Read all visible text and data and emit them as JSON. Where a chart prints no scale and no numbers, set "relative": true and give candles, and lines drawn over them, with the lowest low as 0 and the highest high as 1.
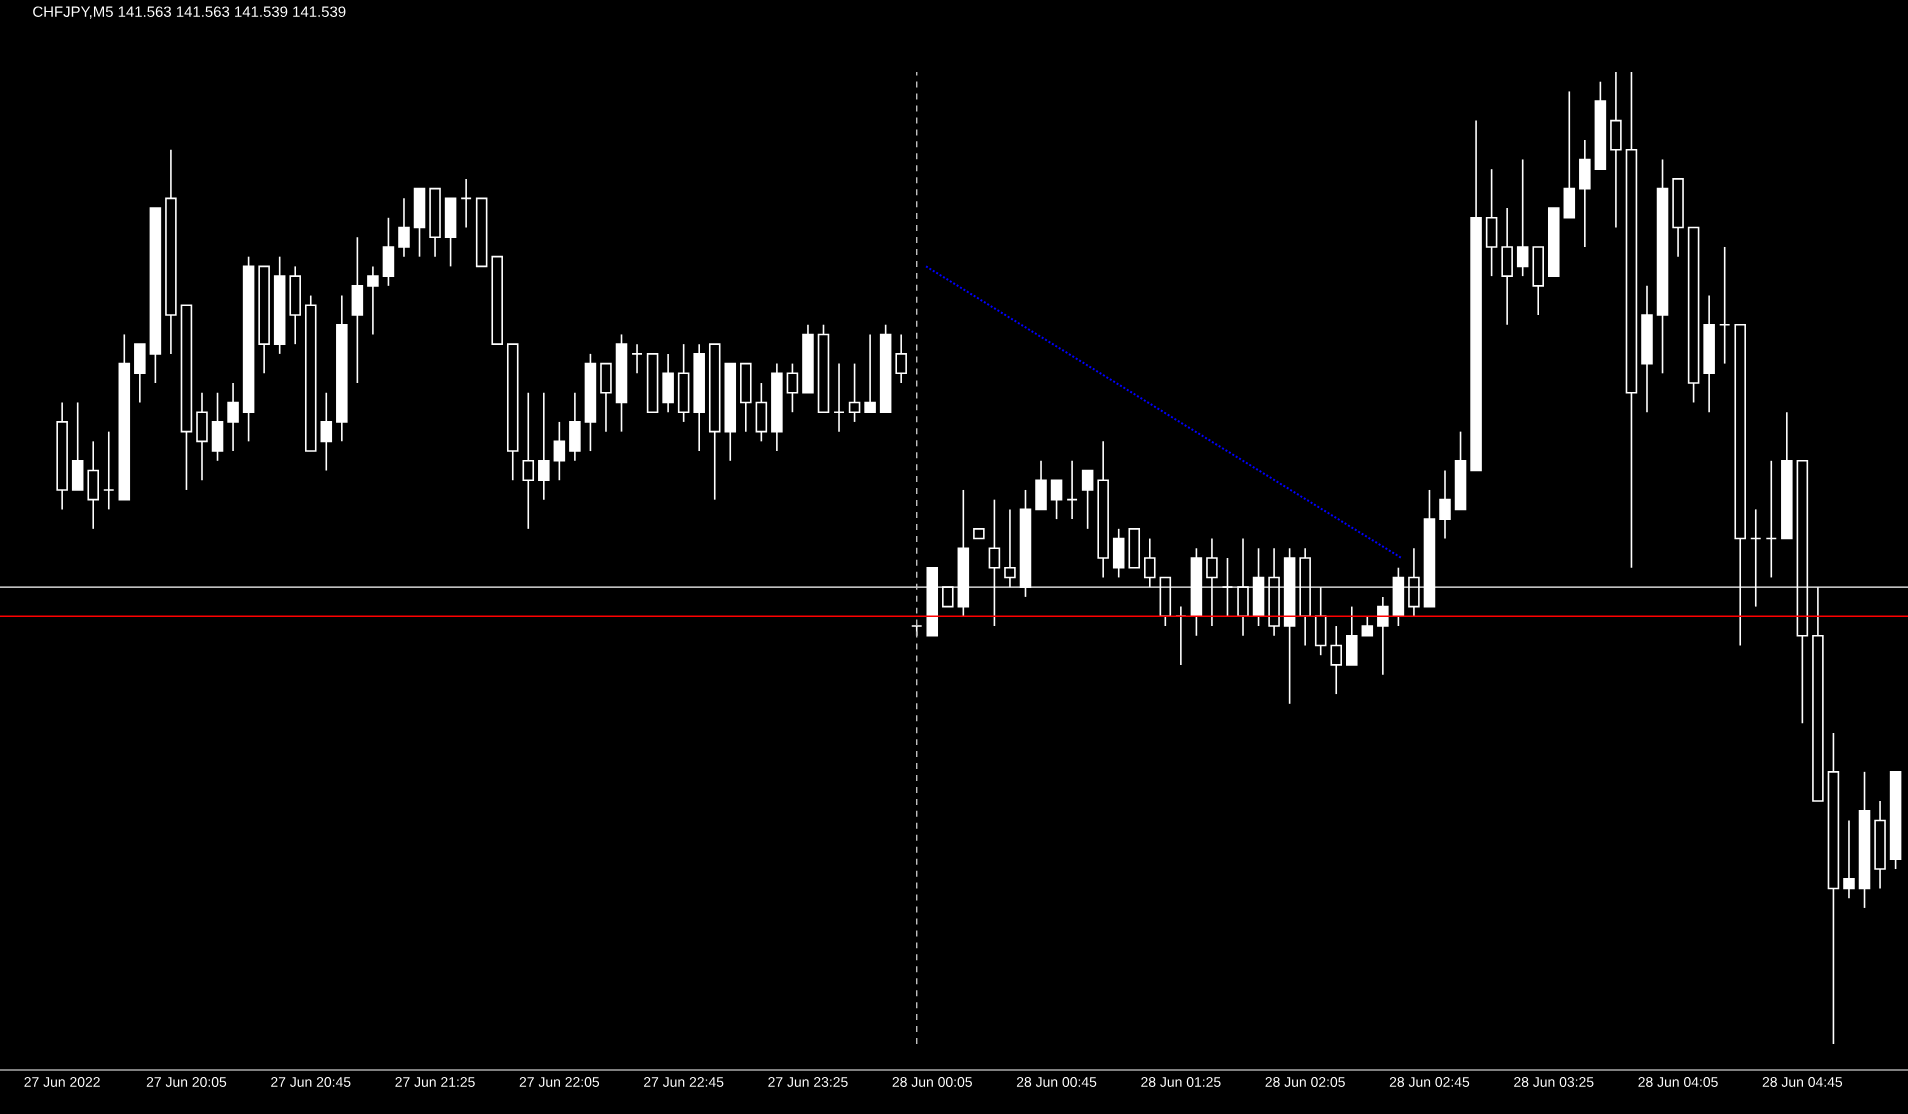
{
  "chart_data": {
    "type": "candlestick",
    "title": "CHFJPY,M5 141.563 141.563 141.539 141.539",
    "relative": true,
    "color": "#ffffff",
    "x": [
      "2022-06-27T19:25",
      "2022-06-27T19:30",
      "2022-06-27T19:35",
      "2022-06-27T19:40",
      "2022-06-27T19:45",
      "2022-06-27T19:50",
      "2022-06-27T19:55",
      "2022-06-27T20:00",
      "2022-06-27T20:05",
      "2022-06-27T20:10",
      "2022-06-27T20:15",
      "2022-06-27T20:20",
      "2022-06-27T20:25",
      "2022-06-27T20:30",
      "2022-06-27T20:35",
      "2022-06-27T20:40",
      "2022-06-27T20:45",
      "2022-06-27T20:50",
      "2022-06-27T20:55",
      "2022-06-27T21:00",
      "2022-06-27T21:05",
      "2022-06-27T21:10",
      "2022-06-27T21:15",
      "2022-06-27T21:20",
      "2022-06-27T21:25",
      "2022-06-27T21:30",
      "2022-06-27T21:35",
      "2022-06-27T21:40",
      "2022-06-27T21:45",
      "2022-06-27T21:50",
      "2022-06-27T21:55",
      "2022-06-27T22:00",
      "2022-06-27T22:05",
      "2022-06-27T22:10",
      "2022-06-27T22:15",
      "2022-06-27T22:20",
      "2022-06-27T22:25",
      "2022-06-27T22:30",
      "2022-06-27T22:35",
      "2022-06-27T22:40",
      "2022-06-27T22:45",
      "2022-06-27T22:50",
      "2022-06-27T22:55",
      "2022-06-27T23:00",
      "2022-06-27T23:05",
      "2022-06-27T23:10",
      "2022-06-27T23:15",
      "2022-06-27T23:20",
      "2022-06-27T23:25",
      "2022-06-27T23:30",
      "2022-06-27T23:35",
      "2022-06-27T23:40",
      "2022-06-27T23:45",
      "2022-06-27T23:50",
      "2022-06-27T23:55",
      "2022-06-28T00:00",
      "2022-06-28T00:05",
      "2022-06-28T00:10",
      "2022-06-28T00:15",
      "2022-06-28T00:20",
      "2022-06-28T00:25",
      "2022-06-28T00:30",
      "2022-06-28T00:35",
      "2022-06-28T00:40",
      "2022-06-28T00:45",
      "2022-06-28T00:50",
      "2022-06-28T00:55",
      "2022-06-28T01:00",
      "2022-06-28T01:05",
      "2022-06-28T01:10",
      "2022-06-28T01:15",
      "2022-06-28T01:20",
      "2022-06-28T01:25",
      "2022-06-28T01:30",
      "2022-06-28T01:35",
      "2022-06-28T01:40",
      "2022-06-28T01:45",
      "2022-06-28T01:50",
      "2022-06-28T01:55",
      "2022-06-28T02:00",
      "2022-06-28T02:05",
      "2022-06-28T02:10",
      "2022-06-28T02:15",
      "2022-06-28T02:20",
      "2022-06-28T02:25",
      "2022-06-28T02:30",
      "2022-06-28T02:35",
      "2022-06-28T02:40",
      "2022-06-28T02:45",
      "2022-06-28T02:50",
      "2022-06-28T02:55",
      "2022-06-28T03:00",
      "2022-06-28T03:05",
      "2022-06-28T03:10",
      "2022-06-28T03:15",
      "2022-06-28T03:20",
      "2022-06-28T03:25",
      "2022-06-28T03:30",
      "2022-06-28T03:35",
      "2022-06-28T03:40",
      "2022-06-28T03:45",
      "2022-06-28T03:50",
      "2022-06-28T03:55",
      "2022-06-28T04:00",
      "2022-06-28T04:05",
      "2022-06-28T04:10",
      "2022-06-28T04:15",
      "2022-06-28T04:20",
      "2022-06-28T04:25",
      "2022-06-28T04:30",
      "2022-06-28T04:35",
      "2022-06-28T04:40",
      "2022-06-28T04:45",
      "2022-06-28T04:50",
      "2022-06-28T04:55",
      "2022-06-28T05:00",
      "2022-06-28T05:05",
      "2022-06-28T05:10",
      "2022-06-28T05:15"
    ],
    "ohlc": [
      [
        0.64,
        0.66,
        0.55,
        0.57
      ],
      [
        0.57,
        0.66,
        0.57,
        0.6
      ],
      [
        0.59,
        0.62,
        0.53,
        0.56
      ],
      [
        0.57,
        0.63,
        0.55,
        0.57
      ],
      [
        0.56,
        0.73,
        0.56,
        0.7
      ],
      [
        0.69,
        0.72,
        0.66,
        0.72
      ],
      [
        0.71,
        0.86,
        0.68,
        0.86
      ],
      [
        0.87,
        0.92,
        0.71,
        0.75
      ],
      [
        0.76,
        0.76,
        0.57,
        0.63
      ],
      [
        0.65,
        0.67,
        0.58,
        0.62
      ],
      [
        0.61,
        0.67,
        0.6,
        0.64
      ],
      [
        0.64,
        0.68,
        0.61,
        0.66
      ],
      [
        0.65,
        0.81,
        0.62,
        0.8
      ],
      [
        0.8,
        0.8,
        0.69,
        0.72
      ],
      [
        0.72,
        0.81,
        0.71,
        0.79
      ],
      [
        0.79,
        0.8,
        0.72,
        0.75
      ],
      [
        0.76,
        0.77,
        0.61,
        0.61
      ],
      [
        0.62,
        0.67,
        0.59,
        0.64
      ],
      [
        0.64,
        0.77,
        0.62,
        0.74
      ],
      [
        0.75,
        0.83,
        0.68,
        0.78
      ],
      [
        0.78,
        0.8,
        0.73,
        0.79
      ],
      [
        0.79,
        0.85,
        0.78,
        0.82
      ],
      [
        0.82,
        0.87,
        0.81,
        0.84
      ],
      [
        0.84,
        0.88,
        0.81,
        0.88
      ],
      [
        0.88,
        0.88,
        0.81,
        0.83
      ],
      [
        0.83,
        0.87,
        0.8,
        0.87
      ],
      [
        0.87,
        0.89,
        0.84,
        0.87
      ],
      [
        0.87,
        0.87,
        0.8,
        0.8
      ],
      [
        0.81,
        0.81,
        0.72,
        0.72
      ],
      [
        0.72,
        0.72,
        0.58,
        0.61
      ],
      [
        0.6,
        0.67,
        0.53,
        0.58
      ],
      [
        0.58,
        0.67,
        0.56,
        0.6
      ],
      [
        0.6,
        0.64,
        0.58,
        0.62
      ],
      [
        0.61,
        0.67,
        0.6,
        0.64
      ],
      [
        0.64,
        0.71,
        0.61,
        0.7
      ],
      [
        0.7,
        0.7,
        0.63,
        0.67
      ],
      [
        0.66,
        0.73,
        0.63,
        0.72
      ],
      [
        0.71,
        0.72,
        0.69,
        0.71
      ],
      [
        0.71,
        0.71,
        0.65,
        0.65
      ],
      [
        0.66,
        0.71,
        0.65,
        0.69
      ],
      [
        0.69,
        0.72,
        0.64,
        0.65
      ],
      [
        0.65,
        0.72,
        0.61,
        0.71
      ],
      [
        0.72,
        0.72,
        0.56,
        0.63
      ],
      [
        0.63,
        0.7,
        0.6,
        0.7
      ],
      [
        0.7,
        0.7,
        0.63,
        0.66
      ],
      [
        0.66,
        0.68,
        0.62,
        0.63
      ],
      [
        0.63,
        0.7,
        0.61,
        0.69
      ],
      [
        0.69,
        0.7,
        0.65,
        0.67
      ],
      [
        0.67,
        0.74,
        0.67,
        0.73
      ],
      [
        0.73,
        0.74,
        0.65,
        0.65
      ],
      [
        0.65,
        0.7,
        0.63,
        0.65
      ],
      [
        0.66,
        0.7,
        0.64,
        0.65
      ],
      [
        0.65,
        0.73,
        0.65,
        0.66
      ],
      [
        0.65,
        0.74,
        0.65,
        0.73
      ],
      [
        0.71,
        0.73,
        0.68,
        0.69
      ],
      [
        0.43,
        0.43,
        0.42,
        0.43
      ],
      [
        0.42,
        0.49,
        0.42,
        0.49
      ],
      [
        0.47,
        0.47,
        0.45,
        0.45
      ],
      [
        0.45,
        0.57,
        0.44,
        0.51
      ],
      [
        0.53,
        0.53,
        0.52,
        0.52
      ],
      [
        0.51,
        0.56,
        0.43,
        0.49
      ],
      [
        0.49,
        0.55,
        0.47,
        0.48
      ],
      [
        0.47,
        0.57,
        0.46,
        0.55
      ],
      [
        0.55,
        0.6,
        0.55,
        0.58
      ],
      [
        0.56,
        0.58,
        0.54,
        0.58
      ],
      [
        0.56,
        0.6,
        0.54,
        0.56
      ],
      [
        0.57,
        0.59,
        0.53,
        0.59
      ],
      [
        0.58,
        0.62,
        0.48,
        0.5
      ],
      [
        0.49,
        0.53,
        0.48,
        0.52
      ],
      [
        0.53,
        0.53,
        0.49,
        0.49
      ],
      [
        0.5,
        0.52,
        0.47,
        0.48
      ],
      [
        0.48,
        0.48,
        0.43,
        0.44
      ],
      [
        0.44,
        0.45,
        0.39,
        0.44
      ],
      [
        0.44,
        0.51,
        0.42,
        0.5
      ],
      [
        0.5,
        0.52,
        0.43,
        0.48
      ],
      [
        0.47,
        0.5,
        0.44,
        0.47
      ],
      [
        0.47,
        0.52,
        0.42,
        0.44
      ],
      [
        0.44,
        0.51,
        0.43,
        0.48
      ],
      [
        0.48,
        0.51,
        0.42,
        0.43
      ],
      [
        0.43,
        0.51,
        0.35,
        0.5
      ],
      [
        0.5,
        0.51,
        0.41,
        0.44
      ],
      [
        0.44,
        0.47,
        0.4,
        0.41
      ],
      [
        0.41,
        0.43,
        0.36,
        0.39
      ],
      [
        0.39,
        0.45,
        0.39,
        0.42
      ],
      [
        0.42,
        0.44,
        0.42,
        0.43
      ],
      [
        0.43,
        0.46,
        0.38,
        0.45
      ],
      [
        0.44,
        0.49,
        0.43,
        0.48
      ],
      [
        0.48,
        0.51,
        0.44,
        0.45
      ],
      [
        0.45,
        0.57,
        0.45,
        0.54
      ],
      [
        0.54,
        0.59,
        0.52,
        0.56
      ],
      [
        0.55,
        0.63,
        0.55,
        0.6
      ],
      [
        0.59,
        0.95,
        0.59,
        0.85
      ],
      [
        0.85,
        0.9,
        0.79,
        0.82
      ],
      [
        0.82,
        0.86,
        0.74,
        0.79
      ],
      [
        0.8,
        0.91,
        0.79,
        0.82
      ],
      [
        0.82,
        0.82,
        0.75,
        0.78
      ],
      [
        0.79,
        0.86,
        0.79,
        0.86
      ],
      [
        0.85,
        0.98,
        0.85,
        0.88
      ],
      [
        0.88,
        0.93,
        0.82,
        0.91
      ],
      [
        0.9,
        0.99,
        0.9,
        0.97
      ],
      [
        0.95,
        1.0,
        0.84,
        0.92
      ],
      [
        0.92,
        1.0,
        0.49,
        0.67
      ],
      [
        0.7,
        0.78,
        0.65,
        0.75
      ],
      [
        0.75,
        0.91,
        0.69,
        0.88
      ],
      [
        0.89,
        0.89,
        0.81,
        0.84
      ],
      [
        0.84,
        0.84,
        0.66,
        0.68
      ],
      [
        0.69,
        0.77,
        0.65,
        0.74
      ],
      [
        0.74,
        0.82,
        0.7,
        0.74
      ],
      [
        0.74,
        0.74,
        0.41,
        0.52
      ],
      [
        0.52,
        0.55,
        0.45,
        0.52
      ],
      [
        0.52,
        0.6,
        0.48,
        0.52
      ],
      [
        0.52,
        0.65,
        0.52,
        0.6
      ],
      [
        0.6,
        0.6,
        0.33,
        0.42
      ],
      [
        0.42,
        0.47,
        0.25,
        0.25
      ],
      [
        0.28,
        0.32,
        0.0,
        0.16
      ],
      [
        0.16,
        0.23,
        0.15,
        0.17
      ],
      [
        0.16,
        0.28,
        0.14,
        0.24
      ],
      [
        0.23,
        0.25,
        0.16,
        0.18
      ],
      [
        0.19,
        0.28,
        0.18,
        0.28
      ]
    ],
    "xlim": [
      "2022-06-27T19:05",
      "2022-06-28T05:19"
    ],
    "xticks": [
      {
        "value": "2022-06-27T19:25",
        "label": "27 Jun 2022"
      },
      {
        "value": "2022-06-27T20:05",
        "label": "27 Jun 20:05"
      },
      {
        "value": "2022-06-27T20:45",
        "label": "27 Jun 20:45"
      },
      {
        "value": "2022-06-27T21:25",
        "label": "27 Jun 21:25"
      },
      {
        "value": "2022-06-27T22:05",
        "label": "27 Jun 22:05"
      },
      {
        "value": "2022-06-27T22:45",
        "label": "27 Jun 22:45"
      },
      {
        "value": "2022-06-27T23:25",
        "label": "27 Jun 23:25"
      },
      {
        "value": "2022-06-28T00:05",
        "label": "28 Jun 00:05"
      },
      {
        "value": "2022-06-28T00:45",
        "label": "28 Jun 00:45"
      },
      {
        "value": "2022-06-28T01:25",
        "label": "28 Jun 01:25"
      },
      {
        "value": "2022-06-28T02:05",
        "label": "28 Jun 02:05"
      },
      {
        "value": "2022-06-28T02:45",
        "label": "28 Jun 02:45"
      },
      {
        "value": "2022-06-28T03:25",
        "label": "28 Jun 03:25"
      },
      {
        "value": "2022-06-28T04:05",
        "label": "28 Jun 04:05"
      },
      {
        "value": "2022-06-28T04:45",
        "label": "28 Jun 04:45"
      }
    ],
    "tick_labels": "x",
    "ref_lines": [
      {
        "axis": "y",
        "value": 0.47,
        "color": "#ffffff"
      },
      {
        "axis": "y",
        "value": 0.44,
        "color": "#ff0000"
      },
      {
        "axis": "x",
        "value": "2022-06-28T00:00",
        "color": "#c0c0c0",
        "line_style": "dashed"
      }
    ],
    "series": [
      {
        "type": "line",
        "x": [
          "2022-06-28T00:03",
          "2022-06-28T02:36"
        ],
        "values": [
          0.8,
          0.5
        ],
        "color": "#0000ff",
        "line_style": "dotted"
      }
    ]
  }
}
